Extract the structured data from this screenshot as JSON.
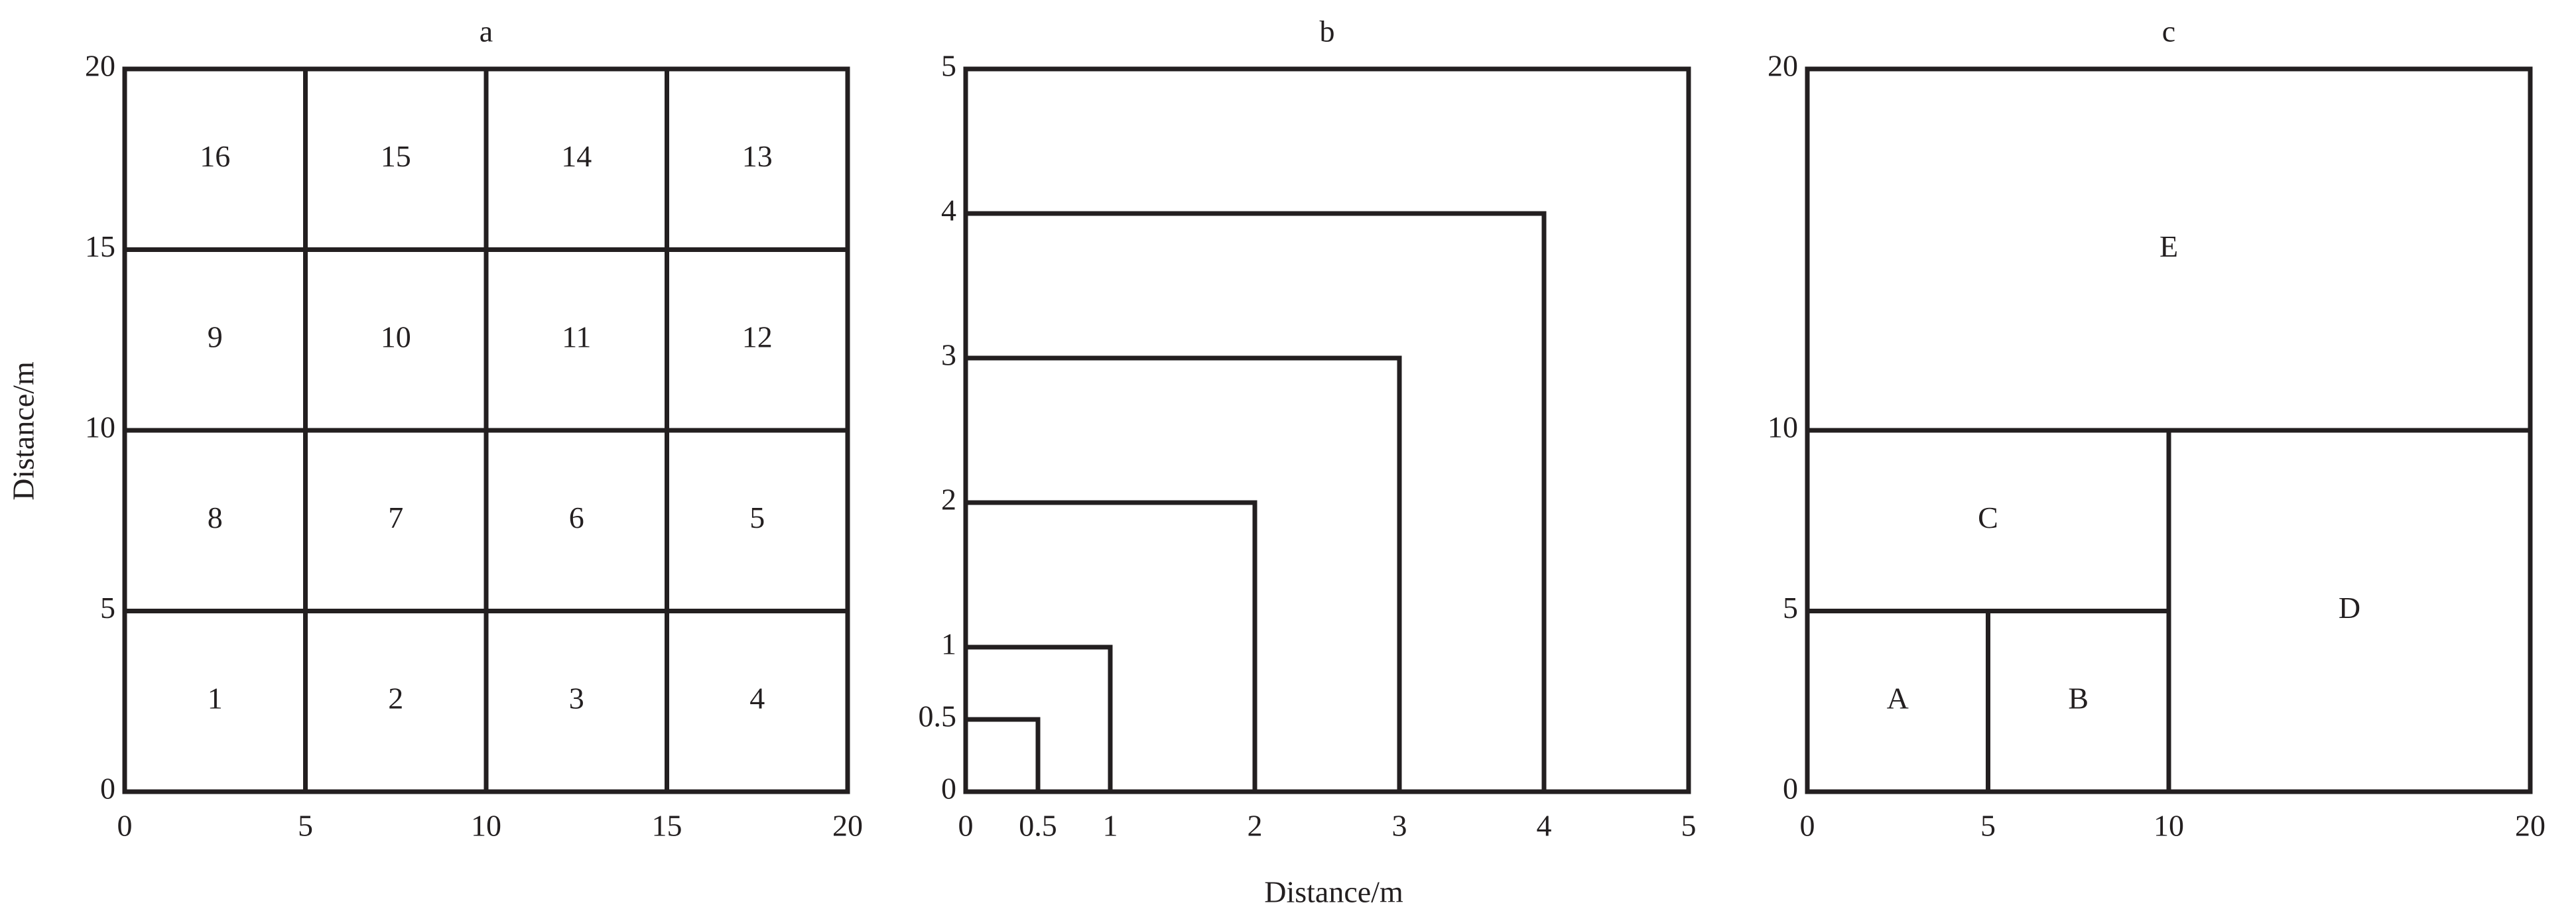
{
  "x_label": "Distance/m",
  "y_label": "Distance/m",
  "panels": [
    {
      "title": "a",
      "xlim": [
        0,
        20
      ],
      "ylim": [
        0,
        20
      ],
      "xticks": [
        0,
        5,
        10,
        15,
        20
      ],
      "yticks": [
        0,
        5,
        10,
        15,
        20
      ],
      "cells": [
        {
          "label": "16",
          "x": [
            0,
            5
          ],
          "y": [
            15,
            20
          ]
        },
        {
          "label": "15",
          "x": [
            5,
            10
          ],
          "y": [
            15,
            20
          ]
        },
        {
          "label": "14",
          "x": [
            10,
            15
          ],
          "y": [
            15,
            20
          ]
        },
        {
          "label": "13",
          "x": [
            15,
            20
          ],
          "y": [
            15,
            20
          ]
        },
        {
          "label": "9",
          "x": [
            0,
            5
          ],
          "y": [
            10,
            15
          ]
        },
        {
          "label": "10",
          "x": [
            5,
            10
          ],
          "y": [
            10,
            15
          ]
        },
        {
          "label": "11",
          "x": [
            10,
            15
          ],
          "y": [
            10,
            15
          ]
        },
        {
          "label": "12",
          "x": [
            15,
            20
          ],
          "y": [
            10,
            15
          ]
        },
        {
          "label": "8",
          "x": [
            0,
            5
          ],
          "y": [
            5,
            10
          ]
        },
        {
          "label": "7",
          "x": [
            5,
            10
          ],
          "y": [
            5,
            10
          ]
        },
        {
          "label": "6",
          "x": [
            10,
            15
          ],
          "y": [
            5,
            10
          ]
        },
        {
          "label": "5",
          "x": [
            15,
            20
          ],
          "y": [
            5,
            10
          ]
        },
        {
          "label": "1",
          "x": [
            0,
            5
          ],
          "y": [
            0,
            5
          ]
        },
        {
          "label": "2",
          "x": [
            5,
            10
          ],
          "y": [
            0,
            5
          ]
        },
        {
          "label": "3",
          "x": [
            10,
            15
          ],
          "y": [
            0,
            5
          ]
        },
        {
          "label": "4",
          "x": [
            15,
            20
          ],
          "y": [
            0,
            5
          ]
        }
      ]
    },
    {
      "title": "b",
      "xlim": [
        0,
        5
      ],
      "ylim": [
        0,
        5
      ],
      "xticks": [
        0,
        0.5,
        1,
        2,
        3,
        4,
        5
      ],
      "yticks": [
        0,
        0.5,
        1,
        2,
        3,
        4,
        5
      ],
      "squares": [
        0.5,
        1,
        2,
        3,
        4
      ]
    },
    {
      "title": "c",
      "xlim": [
        0,
        20
      ],
      "ylim": [
        0,
        20
      ],
      "xticks": [
        0,
        5,
        10,
        20
      ],
      "yticks": [
        0,
        5,
        10,
        20
      ],
      "cells": [
        {
          "label": "A",
          "x": [
            0,
            5
          ],
          "y": [
            0,
            5
          ]
        },
        {
          "label": "B",
          "x": [
            5,
            10
          ],
          "y": [
            0,
            5
          ]
        },
        {
          "label": "C",
          "x": [
            0,
            10
          ],
          "y": [
            5,
            10
          ]
        },
        {
          "label": "D",
          "x": [
            10,
            20
          ],
          "y": [
            0,
            10
          ]
        },
        {
          "label": "E",
          "x": [
            0,
            20
          ],
          "y": [
            10,
            20
          ]
        }
      ]
    }
  ]
}
